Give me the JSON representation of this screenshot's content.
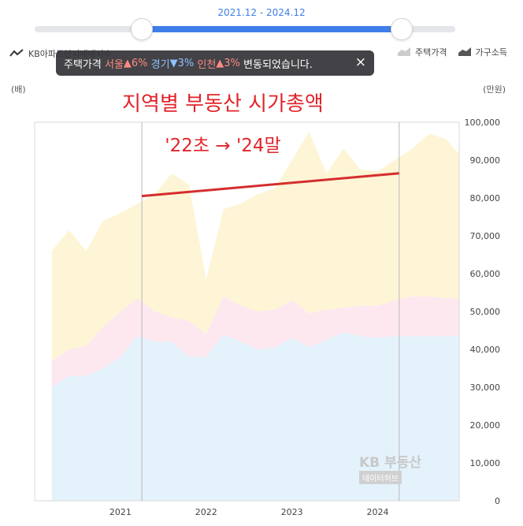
{
  "range": {
    "label": "2021.12 - 2024.12"
  },
  "legend": {
    "left_label": "KB아파트단지매매지수",
    "right_items": [
      {
        "label": "주택가격",
        "icon": "area-icon",
        "color": "#cccccc"
      },
      {
        "label": "가구소득",
        "icon": "area-icon",
        "color": "#555555"
      }
    ]
  },
  "tooltip": {
    "prefix": "주택가격",
    "region1": "서울",
    "arrow1": "▲",
    "pct1": "6%",
    "region2": "경기",
    "arrow2": "▼",
    "pct2": "3%",
    "region3": "인천",
    "arrow3": "▲",
    "pct3": "3%",
    "suffix": "변동되었습니다.",
    "close_icon": "×"
  },
  "units": {
    "left": "(배)",
    "right": "(만원)"
  },
  "annotation": {
    "title": "지역별 부동산 시가총액",
    "subtitle": "'22초 → '24말",
    "color": "#e0252b"
  },
  "watermark": {
    "main": "KB 부동산",
    "sub": "데이터허브"
  },
  "chart_data": {
    "type": "area",
    "stacked": true,
    "x": [
      2020.2,
      2020.4,
      2020.6,
      2020.8,
      2021.0,
      2021.2,
      2021.4,
      2021.6,
      2021.8,
      2022.0,
      2022.2,
      2022.4,
      2022.6,
      2022.8,
      2023.0,
      2023.2,
      2023.4,
      2023.6,
      2023.8,
      2024.0,
      2024.2,
      2024.4,
      2024.6,
      2024.8,
      2024.95
    ],
    "series": [
      {
        "name": "서울",
        "color": "#e4f2fc",
        "values": [
          30000,
          33000,
          33000,
          35000,
          38000,
          43500,
          42000,
          42000,
          38000,
          38000,
          44000,
          42000,
          40000,
          40500,
          43000,
          40500,
          42500,
          44500,
          43500,
          43000,
          43500,
          43500,
          43500,
          43500,
          43500
        ]
      },
      {
        "name": "경기",
        "color": "#fde8f0",
        "values": [
          7000,
          7000,
          8000,
          11000,
          12000,
          10000,
          8000,
          6500,
          9500,
          6000,
          10000,
          9500,
          10000,
          10000,
          10000,
          9000,
          8000,
          6500,
          8000,
          8500,
          9500,
          10500,
          10500,
          10000,
          10000
        ]
      },
      {
        "name": "인천",
        "color": "#fdf5d5",
        "values": [
          29000,
          31500,
          25000,
          28000,
          26000,
          25000,
          31000,
          38000,
          36000,
          14500,
          23000,
          27000,
          31000,
          32000,
          37000,
          48000,
          36000,
          42000,
          36000,
          35500,
          37000,
          39000,
          43000,
          42000,
          38000
        ]
      }
    ],
    "x_ticks": [
      "2021",
      "2022",
      "2023",
      "2024"
    ],
    "x_tick_values": [
      2021,
      2022,
      2023,
      2024
    ],
    "xlim": [
      2020.0,
      2024.95
    ],
    "y_right_ticks": [
      "0",
      "10,000",
      "20,000",
      "30,000",
      "40,000",
      "50,000",
      "60,000",
      "70,000",
      "80,000",
      "90,000",
      "100,000"
    ],
    "ylim": [
      0,
      100000
    ],
    "vertical_markers": [
      2021.25,
      2024.25
    ],
    "trend_line": {
      "from": [
        2021.25,
        80500
      ],
      "to": [
        2024.25,
        86500
      ],
      "color": "#d42e2e"
    },
    "grid": false
  }
}
